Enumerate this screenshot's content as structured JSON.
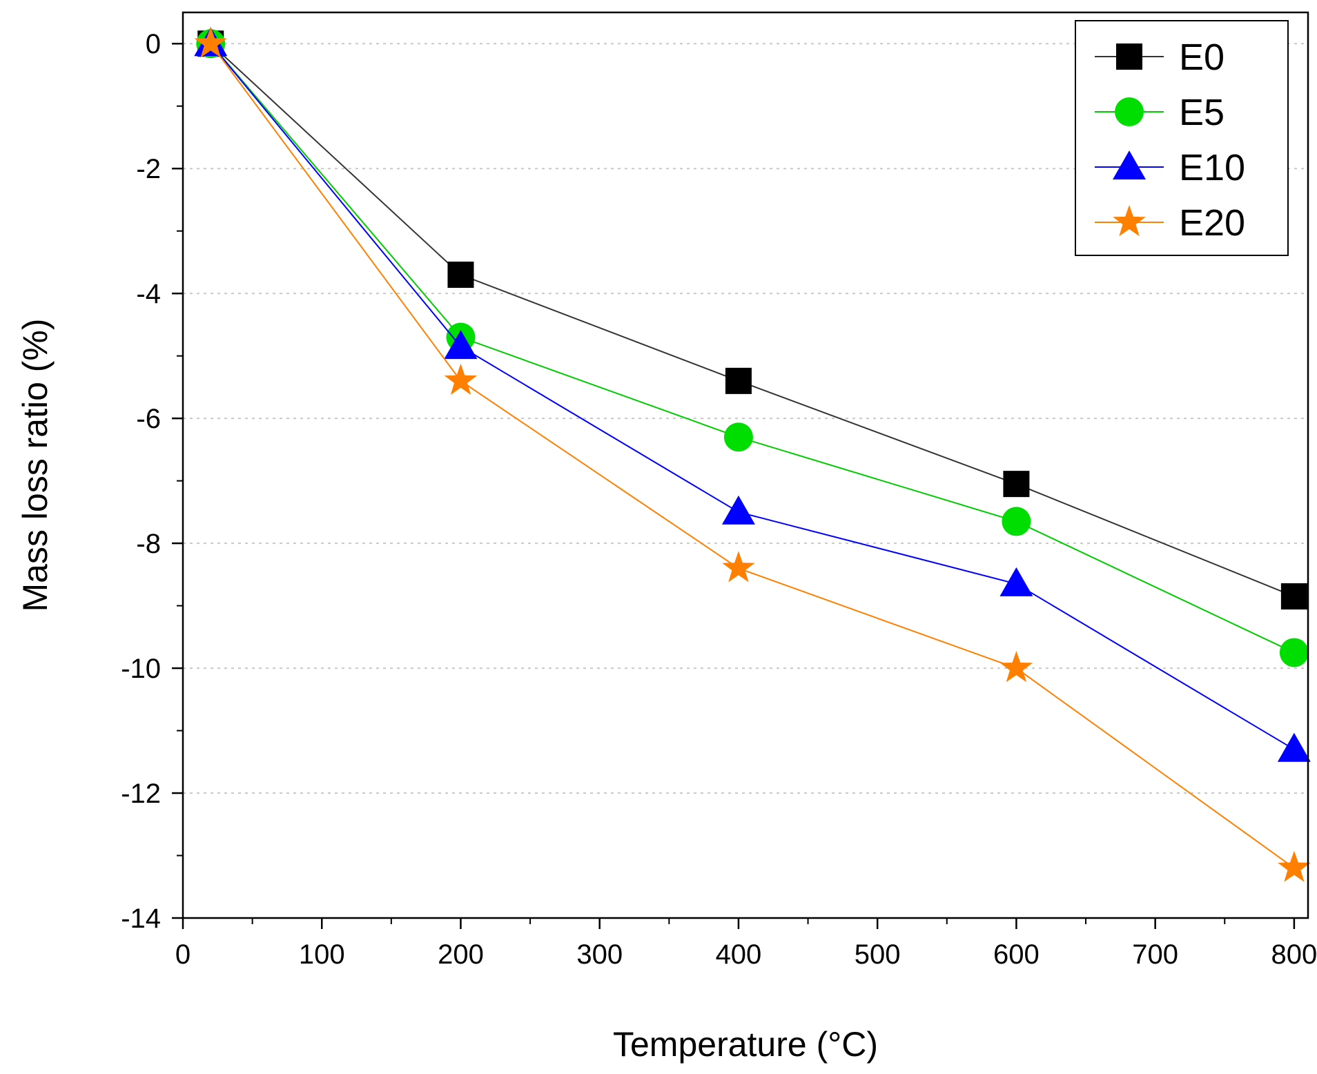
{
  "chart_data": {
    "type": "line",
    "title": "",
    "xlabel": "Temperature (°C)",
    "ylabel": "Mass loss ratio (%)",
    "xlim": [
      0,
      810
    ],
    "ylim": [
      -14,
      0.5
    ],
    "x_ticks": [
      0,
      100,
      200,
      300,
      400,
      500,
      600,
      700,
      800
    ],
    "y_ticks": [
      0,
      -2,
      -4,
      -6,
      -8,
      -10,
      -12,
      -14
    ],
    "x_tick_labels": [
      "0",
      "100",
      "200",
      "300",
      "400",
      "500",
      "600",
      "700",
      "800"
    ],
    "y_tick_labels": [
      "0",
      "-2",
      "-4",
      "-6",
      "-8",
      "-10",
      "-12",
      "-14"
    ],
    "grid": "horizontal dotted",
    "legend_position": "top-right",
    "x": [
      20,
      200,
      400,
      600,
      800
    ],
    "series": [
      {
        "name": "E0",
        "marker": "square",
        "color": "#000000",
        "line_color": "#333333",
        "values": [
          0,
          -3.7,
          -5.4,
          -7.05,
          -8.85
        ]
      },
      {
        "name": "E5",
        "marker": "circle",
        "color": "#00dd00",
        "line_color": "#00cc00",
        "values": [
          0,
          -4.7,
          -6.3,
          -7.65,
          -9.75
        ]
      },
      {
        "name": "E10",
        "marker": "triangle",
        "color": "#0000ff",
        "line_color": "#0000ff",
        "values": [
          0,
          -4.85,
          -7.5,
          -8.65,
          -11.3
        ]
      },
      {
        "name": "E20",
        "marker": "star",
        "color": "#ff8000",
        "line_color": "#ff8000",
        "values": [
          0,
          -5.4,
          -8.4,
          -10.0,
          -13.2
        ]
      }
    ]
  }
}
